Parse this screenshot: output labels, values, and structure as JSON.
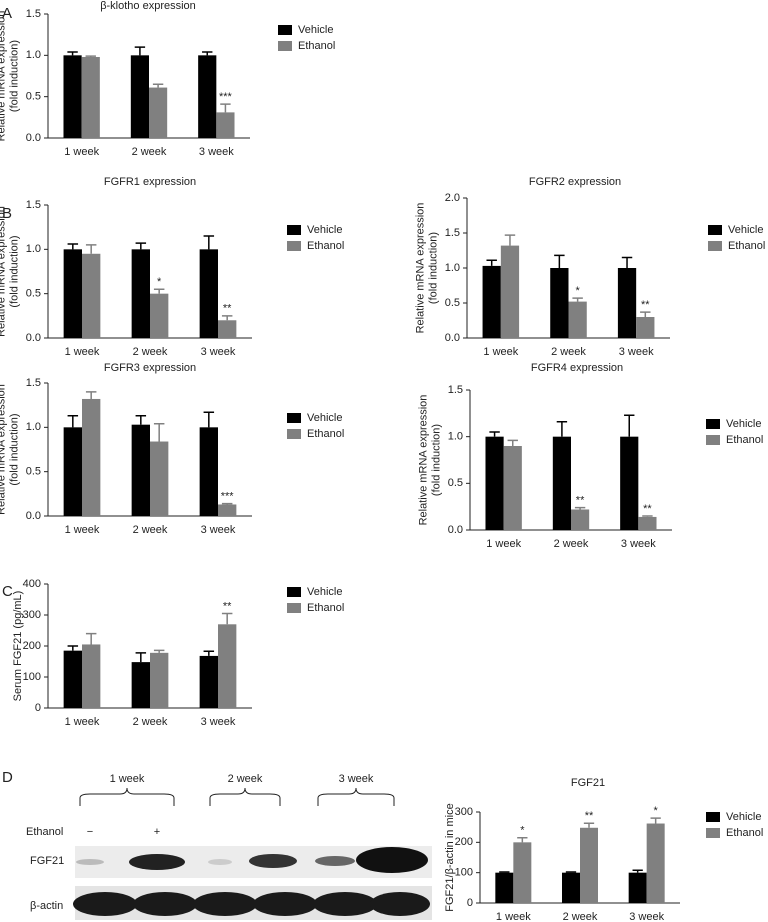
{
  "panel_labels": [
    "A",
    "B",
    "C",
    "D"
  ],
  "blot": {
    "lanes": [
      "1 week",
      "2 week",
      "3 week"
    ],
    "treatment_label": "Ethanol",
    "treatment_marks": [
      "−",
      "+"
    ],
    "rows": [
      "FGF21",
      "β-actin"
    ]
  },
  "chart_data": [
    {
      "type": "bar",
      "title": "β-klotho expression",
      "ylabel": [
        "Relative mRNA expression",
        "(fold induction)"
      ],
      "categories": [
        "1 week",
        "2 week",
        "3 week"
      ],
      "ylim": [
        0,
        1.5
      ],
      "yticks": [
        {
          "value": 0,
          "label": "0.0"
        },
        0.5,
        {
          "value": 1,
          "label": "1.0"
        },
        1.5
      ],
      "series": [
        {
          "name": "Vehicle",
          "color": "#000000",
          "values": [
            1.0,
            1.0,
            1.0
          ],
          "errors": [
            0.04,
            0.1,
            0.04
          ],
          "significance": [
            null,
            null,
            null
          ]
        },
        {
          "name": "Ethanol",
          "color": "#808080",
          "values": [
            0.98,
            0.61,
            0.31
          ],
          "errors": [
            0.01,
            0.04,
            0.1
          ],
          "significance": [
            null,
            null,
            "***"
          ]
        }
      ]
    },
    {
      "type": "bar",
      "title": "FGFR1 expression",
      "ylabel": [
        "Relative mRNA expression",
        "(fold induction)"
      ],
      "categories": [
        "1 week",
        "2 week",
        "3 week"
      ],
      "ylim": [
        0,
        1.5
      ],
      "yticks": [
        {
          "value": 0,
          "label": "0.0"
        },
        0.5,
        {
          "value": 1,
          "label": "1.0"
        },
        1.5
      ],
      "series": [
        {
          "name": "Vehicle",
          "color": "#000000",
          "values": [
            1.0,
            1.0,
            1.0
          ],
          "errors": [
            0.06,
            0.07,
            0.15
          ],
          "significance": [
            null,
            null,
            null
          ]
        },
        {
          "name": "Ethanol",
          "color": "#808080",
          "values": [
            0.95,
            0.5,
            0.2
          ],
          "errors": [
            0.1,
            0.05,
            0.05
          ],
          "significance": [
            null,
            "*",
            "**"
          ]
        }
      ]
    },
    {
      "type": "bar",
      "title": "FGFR2 expression",
      "ylabel": [
        "Relative mRNA expression",
        "(fold induction)"
      ],
      "categories": [
        "1 week",
        "2 week",
        "3 week"
      ],
      "ylim": [
        0,
        2
      ],
      "yticks": [
        {
          "value": 0,
          "label": "0.0"
        },
        0.5,
        {
          "value": 1,
          "label": "1.0"
        },
        1.5,
        {
          "value": 2,
          "label": "2.0"
        }
      ],
      "series": [
        {
          "name": "Vehicle",
          "color": "#000000",
          "values": [
            1.03,
            1.0,
            1.0
          ],
          "errors": [
            0.08,
            0.18,
            0.15
          ],
          "significance": [
            null,
            null,
            null
          ]
        },
        {
          "name": "Ethanol",
          "color": "#808080",
          "values": [
            1.32,
            0.52,
            0.3
          ],
          "errors": [
            0.15,
            0.05,
            0.07
          ],
          "significance": [
            null,
            "*",
            "**"
          ]
        }
      ]
    },
    {
      "type": "bar",
      "title": "FGFR3 expression",
      "ylabel": [
        "Relative mRNA expression",
        "(fold induction)"
      ],
      "categories": [
        "1 week",
        "2 week",
        "3 week"
      ],
      "ylim": [
        0,
        1.5
      ],
      "yticks": [
        {
          "value": 0,
          "label": "0.0"
        },
        0.5,
        {
          "value": 1,
          "label": "1.0"
        },
        1.5
      ],
      "series": [
        {
          "name": "Vehicle",
          "color": "#000000",
          "values": [
            1.0,
            1.03,
            1.0
          ],
          "errors": [
            0.13,
            0.1,
            0.17
          ],
          "significance": [
            null,
            null,
            null
          ]
        },
        {
          "name": "Ethanol",
          "color": "#808080",
          "values": [
            1.32,
            0.84,
            0.13
          ],
          "errors": [
            0.08,
            0.2,
            0.01
          ],
          "significance": [
            null,
            null,
            "***"
          ]
        }
      ]
    },
    {
      "type": "bar",
      "title": "FGFR4 expression",
      "ylabel": [
        "Relative mRNA expression",
        "(fold induction)"
      ],
      "categories": [
        "1 week",
        "2 week",
        "3 week"
      ],
      "ylim": [
        0,
        1.5
      ],
      "yticks": [
        {
          "value": 0,
          "label": "0.0"
        },
        0.5,
        {
          "value": 1,
          "label": "1.0"
        },
        1.5
      ],
      "series": [
        {
          "name": "Vehicle",
          "color": "#000000",
          "values": [
            1.0,
            1.0,
            1.0
          ],
          "errors": [
            0.05,
            0.16,
            0.23
          ],
          "significance": [
            null,
            null,
            null
          ]
        },
        {
          "name": "Ethanol",
          "color": "#808080",
          "values": [
            0.9,
            0.22,
            0.14
          ],
          "errors": [
            0.06,
            0.02,
            0.01
          ],
          "significance": [
            null,
            "**",
            "**"
          ]
        }
      ]
    },
    {
      "type": "bar",
      "ylabel": [
        "Serum FGF21 (pg/mL)"
      ],
      "categories": [
        "1 week",
        "2 week",
        "3 week"
      ],
      "ylim": [
        0,
        400
      ],
      "yticks": [
        0,
        100,
        200,
        300,
        400
      ],
      "series": [
        {
          "name": "Vehicle",
          "color": "#000000",
          "values": [
            185,
            148,
            168
          ],
          "errors": [
            15,
            30,
            15
          ],
          "significance": [
            null,
            null,
            null
          ]
        },
        {
          "name": "Ethanol",
          "color": "#808080",
          "values": [
            205,
            178,
            270
          ],
          "errors": [
            35,
            8,
            35
          ],
          "significance": [
            null,
            null,
            "**"
          ]
        }
      ]
    },
    {
      "type": "bar",
      "title": "FGF21",
      "ylabel": [
        "FGF21/β-actin in mice"
      ],
      "categories": [
        "1 week",
        "2 week",
        "3 week"
      ],
      "ylim": [
        0,
        300
      ],
      "yticks": [
        0,
        100,
        200,
        300
      ],
      "series": [
        {
          "name": "Vehicle",
          "color": "#000000",
          "values": [
            100,
            100,
            100
          ],
          "errors": [
            2,
            2,
            8
          ],
          "significance": [
            null,
            null,
            null
          ]
        },
        {
          "name": "Ethanol",
          "color": "#808080",
          "values": [
            200,
            248,
            262
          ],
          "errors": [
            15,
            15,
            18
          ],
          "significance": [
            "*",
            "**",
            "*"
          ]
        }
      ]
    }
  ]
}
